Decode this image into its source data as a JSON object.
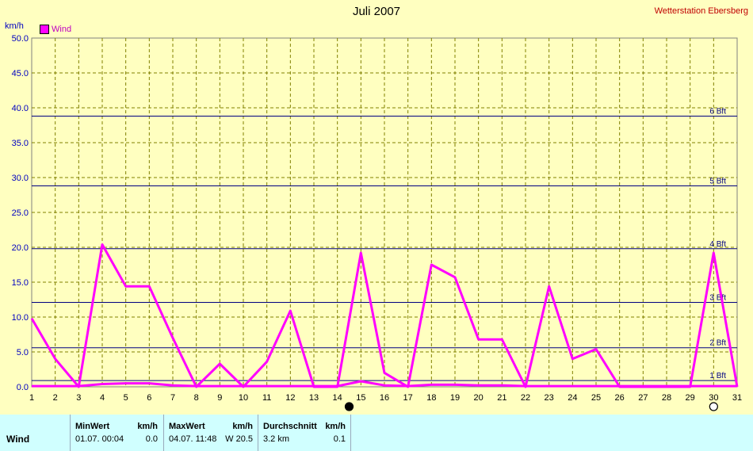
{
  "header": {
    "title": "Juli 2007",
    "station": "Wetterstation Ebersberg",
    "y_unit": "km/h",
    "legend_label": "Wind"
  },
  "colors": {
    "background": "#ffffc0",
    "series": "#ff00ff",
    "beaufort_lines": "#000080",
    "grid": "#808000",
    "axis_labels": "#0000c0",
    "table_bg": "#d0ffff"
  },
  "chart_data": {
    "type": "line",
    "title": "Juli 2007",
    "ylabel": "km/h",
    "ylim": [
      0,
      50
    ],
    "y_ticks": [
      "0.0",
      "5.0",
      "10.0",
      "15.0",
      "20.0",
      "25.0",
      "30.0",
      "35.0",
      "40.0",
      "45.0",
      "50.0"
    ],
    "x": [
      1,
      2,
      3,
      4,
      5,
      6,
      7,
      8,
      9,
      10,
      11,
      12,
      13,
      14,
      15,
      16,
      17,
      18,
      19,
      20,
      21,
      22,
      23,
      24,
      25,
      26,
      27,
      28,
      29,
      30,
      31
    ],
    "grid": true,
    "legend_position": "top-left",
    "series": [
      {
        "name": "Wind",
        "values": [
          9.8,
          4.0,
          0.0,
          20.4,
          14.4,
          14.4,
          7.0,
          0.0,
          3.3,
          0.0,
          3.6,
          10.9,
          0.0,
          0.0,
          19.2,
          2.0,
          0.0,
          17.5,
          15.7,
          6.8,
          6.8,
          0.0,
          14.4,
          4.0,
          5.4,
          0.0,
          0.0,
          0.0,
          0.0,
          19.2,
          0.0
        ]
      },
      {
        "values": [
          0.1,
          0.1,
          0.1,
          0.4,
          0.5,
          0.5,
          0.2,
          0.1,
          0.1,
          0.1,
          0.1,
          0.1,
          0.1,
          0.1,
          0.8,
          0.2,
          0.1,
          0.3,
          0.3,
          0.2,
          0.2,
          0.1,
          0.1,
          0.1,
          0.1,
          0.1,
          0.1,
          0.1,
          0.1,
          0.1,
          0.1
        ]
      }
    ],
    "reference_lines": [
      {
        "label": "1 Bft",
        "value": 0.9
      },
      {
        "label": "2 Bft",
        "value": 5.6
      },
      {
        "label": "3 Bft",
        "value": 12.1
      },
      {
        "label": "4 Bft",
        "value": 19.8
      },
      {
        "label": "5 Bft",
        "value": 28.8
      },
      {
        "label": "6 Bft",
        "value": 38.8
      }
    ],
    "moon_markers": [
      {
        "day": 14.5,
        "phase": "new"
      },
      {
        "day": 30,
        "phase": "full"
      }
    ]
  },
  "table": {
    "row_label": "Wind",
    "columns": [
      {
        "header": "MinWert",
        "unit": "km/h",
        "time": "01.07.  00:04",
        "value": "0.0"
      },
      {
        "header": "MaxWert",
        "unit": "km/h",
        "time": "04.07.  11:48",
        "value": "W 20.5"
      },
      {
        "header": "Durchschnitt",
        "unit": "km/h",
        "time": "3.2 km",
        "value": "0.1"
      }
    ]
  }
}
